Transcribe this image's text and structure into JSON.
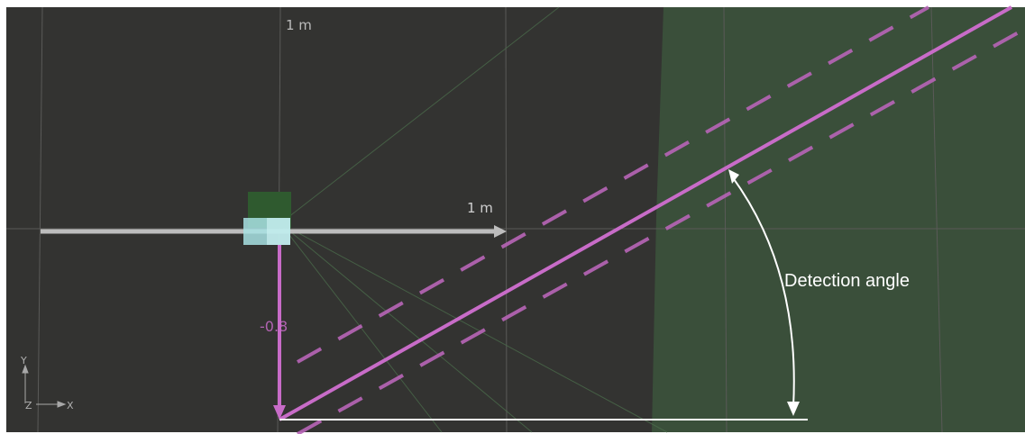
{
  "viewport": {
    "title": "",
    "grid_label_top": "1 m",
    "grid_label_axis": "1 m",
    "value_label": "-0.8",
    "annotation": "Detection angle"
  },
  "axes_gizmo": {
    "y": "Y",
    "z": "Z",
    "x": "X"
  },
  "colors": {
    "background": "#333331",
    "detection_zone": "#3a4f3a",
    "grid": "#555555",
    "line": "#c86cc8",
    "dashed": "#b865b8",
    "arrow_white": "#bdbdbd",
    "annotation": "#ffffff",
    "sensor_box": "#2f5a2f",
    "sensor_cube": "#9fdde0"
  }
}
